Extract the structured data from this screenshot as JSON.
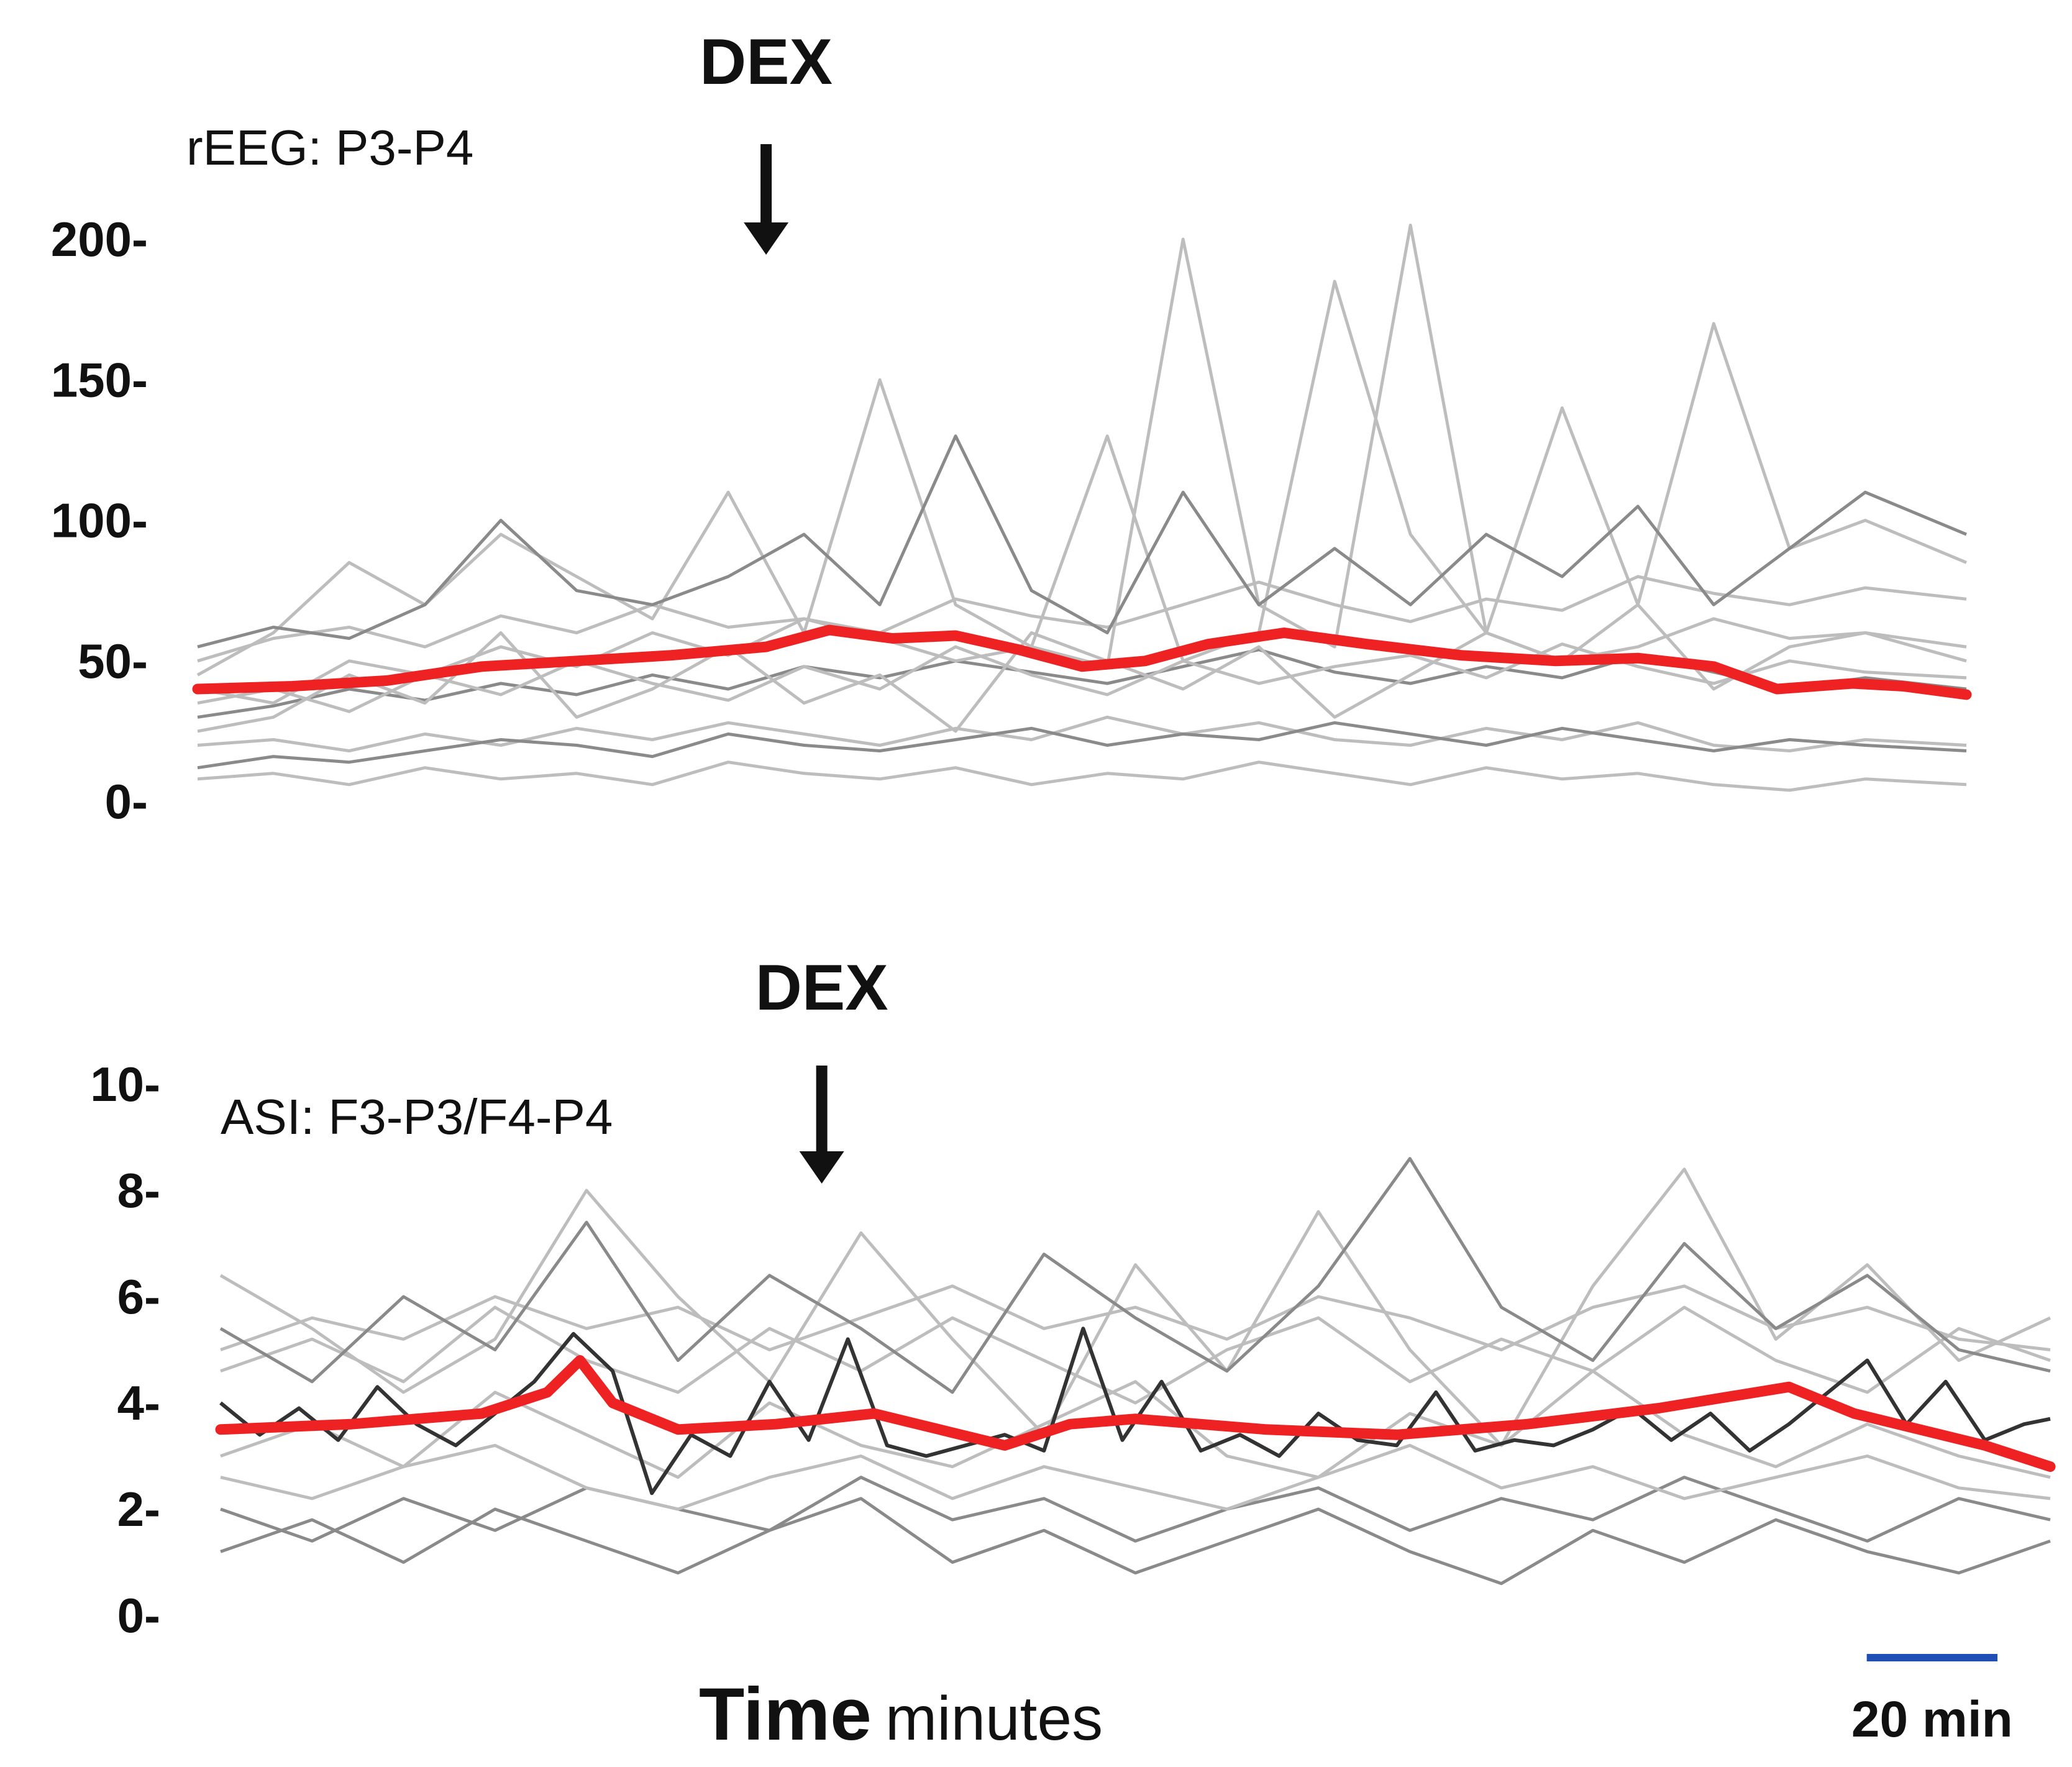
{
  "colors": {
    "mean": "#ee2222",
    "individual_light": "#bdbdbd",
    "individual_dark": "#8a8a8a",
    "highlight": "#333333",
    "scalebar": "#1f4fb5",
    "text": "#111111"
  },
  "x_axis": {
    "title_bold": "Time",
    "title_unit": "minutes"
  },
  "scalebar": {
    "label": "20 min",
    "minutes": 20
  },
  "chart_data": [
    {
      "type": "line",
      "id": "reeg",
      "panel_label": "rEEG: P3-P4",
      "annotation": "DEX",
      "annotation_minute": 90,
      "xlim": [
        0,
        280
      ],
      "ylim": [
        0,
        200
      ],
      "yticks": [
        0,
        50,
        100,
        150,
        200
      ],
      "ytick_labels": [
        "0-",
        "50-",
        "100-",
        "150-",
        "200-"
      ],
      "mean_series": {
        "x": [
          0,
          15,
          30,
          45,
          60,
          75,
          90,
          100,
          110,
          120,
          130,
          140,
          150,
          160,
          172,
          185,
          200,
          215,
          228,
          240,
          250,
          262,
          270,
          280
        ],
        "y": [
          40,
          41,
          43,
          48,
          50,
          52,
          55,
          61,
          58,
          59,
          54,
          48,
          50,
          56,
          60,
          56,
          52,
          50,
          51,
          48,
          40,
          42,
          41,
          38
        ]
      },
      "individual_series": [
        {
          "x": [
            0,
            12,
            24,
            36,
            48,
            60,
            72,
            84,
            96,
            108,
            120,
            132,
            144,
            156,
            168,
            180,
            192,
            204,
            216,
            228,
            240,
            252,
            264,
            280
          ],
          "y": [
            50,
            58,
            62,
            55,
            66,
            60,
            70,
            62,
            65,
            60,
            72,
            66,
            62,
            70,
            78,
            70,
            64,
            72,
            68,
            80,
            74,
            70,
            76,
            72
          ]
        },
        {
          "x": [
            0,
            12,
            24,
            36,
            48,
            60,
            72,
            84,
            96,
            108,
            120,
            132,
            144,
            156,
            168,
            180,
            192,
            204,
            216,
            228,
            240,
            252,
            264,
            280
          ],
          "y": [
            30,
            34,
            40,
            36,
            42,
            38,
            45,
            40,
            48,
            44,
            50,
            46,
            42,
            48,
            54,
            46,
            42,
            48,
            44,
            52,
            46,
            40,
            44,
            40
          ]
        },
        {
          "x": [
            0,
            12,
            24,
            36,
            48,
            60,
            72,
            84,
            96,
            108,
            120,
            132,
            144,
            156,
            168,
            180,
            192,
            204,
            216,
            228,
            240,
            252,
            264,
            280
          ],
          "y": [
            20,
            22,
            18,
            24,
            20,
            26,
            22,
            28,
            24,
            20,
            26,
            22,
            30,
            24,
            28,
            22,
            20,
            26,
            22,
            28,
            20,
            18,
            22,
            20
          ]
        },
        {
          "x": [
            0,
            12,
            24,
            36,
            48,
            60,
            72,
            84,
            96,
            108,
            120,
            132,
            144,
            156,
            168,
            180,
            192,
            204,
            216,
            228,
            240,
            252,
            264,
            280
          ],
          "y": [
            8,
            10,
            6,
            12,
            8,
            10,
            6,
            14,
            10,
            8,
            12,
            6,
            10,
            8,
            14,
            10,
            6,
            12,
            8,
            10,
            6,
            4,
            8,
            6
          ]
        },
        {
          "x": [
            0,
            12,
            24,
            36,
            48,
            60,
            72,
            84,
            96,
            108,
            120,
            132,
            144,
            156,
            168,
            180,
            192,
            204,
            216,
            228,
            240,
            252,
            264,
            280
          ],
          "y": [
            12,
            16,
            14,
            18,
            22,
            20,
            16,
            24,
            20,
            18,
            22,
            26,
            20,
            24,
            22,
            28,
            24,
            20,
            26,
            22,
            18,
            22,
            20,
            18
          ]
        },
        {
          "x": [
            0,
            12,
            24,
            36,
            48,
            60,
            72,
            84,
            96,
            108,
            120,
            132,
            144,
            156,
            168,
            180,
            192,
            204,
            216,
            228,
            240,
            252,
            264,
            280
          ],
          "y": [
            45,
            60,
            85,
            70,
            95,
            80,
            65,
            110,
            60,
            150,
            70,
            55,
            130,
            50,
            60,
            185,
            95,
            60,
            140,
            70,
            170,
            90,
            100,
            85
          ]
        },
        {
          "x": [
            0,
            12,
            24,
            36,
            48,
            60,
            72,
            84,
            96,
            108,
            120,
            132,
            144,
            156,
            168,
            180,
            192,
            204,
            216,
            228,
            240,
            252,
            264,
            280
          ],
          "y": [
            40,
            35,
            50,
            45,
            55,
            48,
            60,
            52,
            65,
            58,
            50,
            55,
            48,
            200,
            70,
            55,
            205,
            60,
            50,
            55,
            65,
            58,
            60,
            55
          ]
        },
        {
          "x": [
            0,
            12,
            24,
            36,
            48,
            60,
            72,
            84,
            96,
            108,
            120,
            132,
            144,
            156,
            168,
            180,
            192,
            204,
            216,
            228,
            240,
            252,
            264,
            280
          ],
          "y": [
            55,
            62,
            58,
            70,
            100,
            75,
            70,
            80,
            95,
            70,
            130,
            75,
            60,
            110,
            70,
            90,
            70,
            95,
            80,
            105,
            70,
            90,
            110,
            95
          ]
        },
        {
          "x": [
            0,
            12,
            24,
            36,
            48,
            60,
            72,
            84,
            96,
            108,
            120,
            132,
            144,
            156,
            168,
            180,
            192,
            204,
            216,
            228,
            240,
            252,
            264,
            280
          ],
          "y": [
            25,
            30,
            45,
            35,
            60,
            30,
            40,
            55,
            35,
            45,
            25,
            60,
            50,
            40,
            55,
            30,
            45,
            60,
            50,
            70,
            40,
            55,
            60,
            50
          ]
        },
        {
          "x": [
            0,
            12,
            24,
            36,
            48,
            60,
            72,
            84,
            96,
            108,
            120,
            132,
            144,
            156,
            168,
            180,
            192,
            204,
            216,
            228,
            240,
            252,
            264,
            280
          ],
          "y": [
            35,
            40,
            32,
            45,
            38,
            50,
            42,
            36,
            48,
            40,
            55,
            45,
            38,
            50,
            42,
            48,
            52,
            44,
            56,
            48,
            42,
            50,
            46,
            44
          ]
        }
      ]
    },
    {
      "type": "line",
      "id": "asi",
      "panel_label": "ASI: F3-P3/F4-P4",
      "annotation": "DEX",
      "annotation_minute": 92,
      "xlim": [
        0,
        280
      ],
      "ylim": [
        0,
        10
      ],
      "yticks": [
        0,
        2,
        4,
        6,
        8,
        10
      ],
      "ytick_labels": [
        "0-",
        "2-",
        "4-",
        "6-",
        "8-",
        "10-"
      ],
      "mean_series": {
        "x": [
          0,
          20,
          40,
          50,
          55,
          60,
          70,
          85,
          100,
          110,
          120,
          130,
          140,
          160,
          180,
          200,
          220,
          240,
          250,
          260,
          270,
          280
        ],
        "y": [
          3.5,
          3.6,
          3.8,
          4.2,
          4.8,
          4.0,
          3.5,
          3.6,
          3.8,
          3.5,
          3.2,
          3.6,
          3.7,
          3.5,
          3.4,
          3.6,
          3.9,
          4.3,
          3.8,
          3.5,
          3.2,
          2.8
        ]
      },
      "highlight_series": {
        "x": [
          0,
          6,
          12,
          18,
          24,
          30,
          36,
          42,
          48,
          54,
          60,
          66,
          72,
          78,
          84,
          90,
          96,
          102,
          108,
          114,
          120,
          126,
          132,
          138,
          144,
          150,
          156,
          162,
          168,
          174,
          180,
          186,
          192,
          198,
          204,
          210,
          216,
          222,
          228,
          234,
          240,
          246,
          252,
          258,
          264,
          270,
          276,
          280
        ],
        "y": [
          4.0,
          3.4,
          3.9,
          3.3,
          4.3,
          3.6,
          3.2,
          3.8,
          4.4,
          5.3,
          4.6,
          2.3,
          3.4,
          3.0,
          4.4,
          3.3,
          5.2,
          3.2,
          3.0,
          3.2,
          3.4,
          3.1,
          5.4,
          3.3,
          4.4,
          3.1,
          3.4,
          3.0,
          3.8,
          3.3,
          3.2,
          4.2,
          3.1,
          3.3,
          3.2,
          3.5,
          3.9,
          3.3,
          3.8,
          3.1,
          3.6,
          4.2,
          4.8,
          3.6,
          4.4,
          3.3,
          3.6,
          3.7
        ]
      },
      "individual_series": [
        {
          "x": [
            0,
            14,
            28,
            42,
            56,
            70,
            84,
            98,
            112,
            126,
            140,
            154,
            168,
            182,
            196,
            210,
            224,
            238,
            252,
            266,
            280
          ],
          "y": [
            5.0,
            5.6,
            5.2,
            6.0,
            5.4,
            5.8,
            5.0,
            5.6,
            6.2,
            5.4,
            5.8,
            5.2,
            6.0,
            5.6,
            5.0,
            5.8,
            6.2,
            5.4,
            5.8,
            5.2,
            5.0
          ]
        },
        {
          "x": [
            0,
            14,
            28,
            42,
            56,
            70,
            84,
            98,
            112,
            126,
            140,
            154,
            168,
            182,
            196,
            210,
            224,
            238,
            252,
            266,
            280
          ],
          "y": [
            2.0,
            1.4,
            2.2,
            1.6,
            2.4,
            2.0,
            1.6,
            2.6,
            1.8,
            2.2,
            1.4,
            2.0,
            2.4,
            1.6,
            2.2,
            1.8,
            2.6,
            2.0,
            1.4,
            2.2,
            1.8
          ]
        },
        {
          "x": [
            0,
            14,
            28,
            42,
            56,
            70,
            84,
            98,
            112,
            126,
            140,
            154,
            168,
            182,
            196,
            210,
            224,
            238,
            252,
            266,
            280
          ],
          "y": [
            6.4,
            5.4,
            4.2,
            5.2,
            8.0,
            6.0,
            4.4,
            7.2,
            5.2,
            3.4,
            6.6,
            4.6,
            7.6,
            5.0,
            3.2,
            6.2,
            8.4,
            5.2,
            6.6,
            4.8,
            5.6
          ]
        },
        {
          "x": [
            0,
            14,
            28,
            42,
            56,
            70,
            84,
            98,
            112,
            126,
            140,
            154,
            168,
            182,
            196,
            210,
            224,
            238,
            252,
            266,
            280
          ],
          "y": [
            3.0,
            3.6,
            2.8,
            4.2,
            3.4,
            2.6,
            4.0,
            3.2,
            2.8,
            3.6,
            4.4,
            3.0,
            2.6,
            3.8,
            3.2,
            4.6,
            3.4,
            2.8,
            3.6,
            3.0,
            2.6
          ]
        },
        {
          "x": [
            0,
            14,
            28,
            42,
            56,
            70,
            84,
            98,
            112,
            126,
            140,
            154,
            168,
            182,
            196,
            210,
            224,
            238,
            252,
            266,
            280
          ],
          "y": [
            1.2,
            1.8,
            1.0,
            2.0,
            1.4,
            0.8,
            1.6,
            2.2,
            1.0,
            1.6,
            0.8,
            1.4,
            2.0,
            1.2,
            0.6,
            1.6,
            1.0,
            1.8,
            1.2,
            0.8,
            1.4
          ]
        },
        {
          "x": [
            0,
            14,
            28,
            42,
            56,
            70,
            84,
            98,
            112,
            126,
            140,
            154,
            168,
            182,
            196,
            210,
            224,
            238,
            252,
            266,
            280
          ],
          "y": [
            4.6,
            5.2,
            4.4,
            5.8,
            4.8,
            4.2,
            5.4,
            4.6,
            5.6,
            4.8,
            4.0,
            5.0,
            5.6,
            4.4,
            5.2,
            4.6,
            5.8,
            4.8,
            4.2,
            5.4,
            4.8
          ]
        },
        {
          "x": [
            0,
            14,
            28,
            42,
            56,
            70,
            84,
            98,
            112,
            126,
            140,
            154,
            168,
            182,
            196,
            210,
            224,
            238,
            252,
            266,
            280
          ],
          "y": [
            2.6,
            2.2,
            2.8,
            3.2,
            2.4,
            2.0,
            2.6,
            3.0,
            2.2,
            2.8,
            2.4,
            2.0,
            2.6,
            3.2,
            2.4,
            2.8,
            2.2,
            2.6,
            3.0,
            2.4,
            2.2
          ]
        },
        {
          "x": [
            0,
            14,
            28,
            42,
            56,
            70,
            84,
            98,
            112,
            126,
            140,
            154,
            168,
            182,
            196,
            210,
            224,
            238,
            252,
            266,
            280
          ],
          "y": [
            5.4,
            4.4,
            6.0,
            5.0,
            7.4,
            4.8,
            6.4,
            5.4,
            4.2,
            6.8,
            5.6,
            4.6,
            6.2,
            8.6,
            5.8,
            4.8,
            7.0,
            5.4,
            6.4,
            5.0,
            4.6
          ]
        }
      ]
    }
  ]
}
